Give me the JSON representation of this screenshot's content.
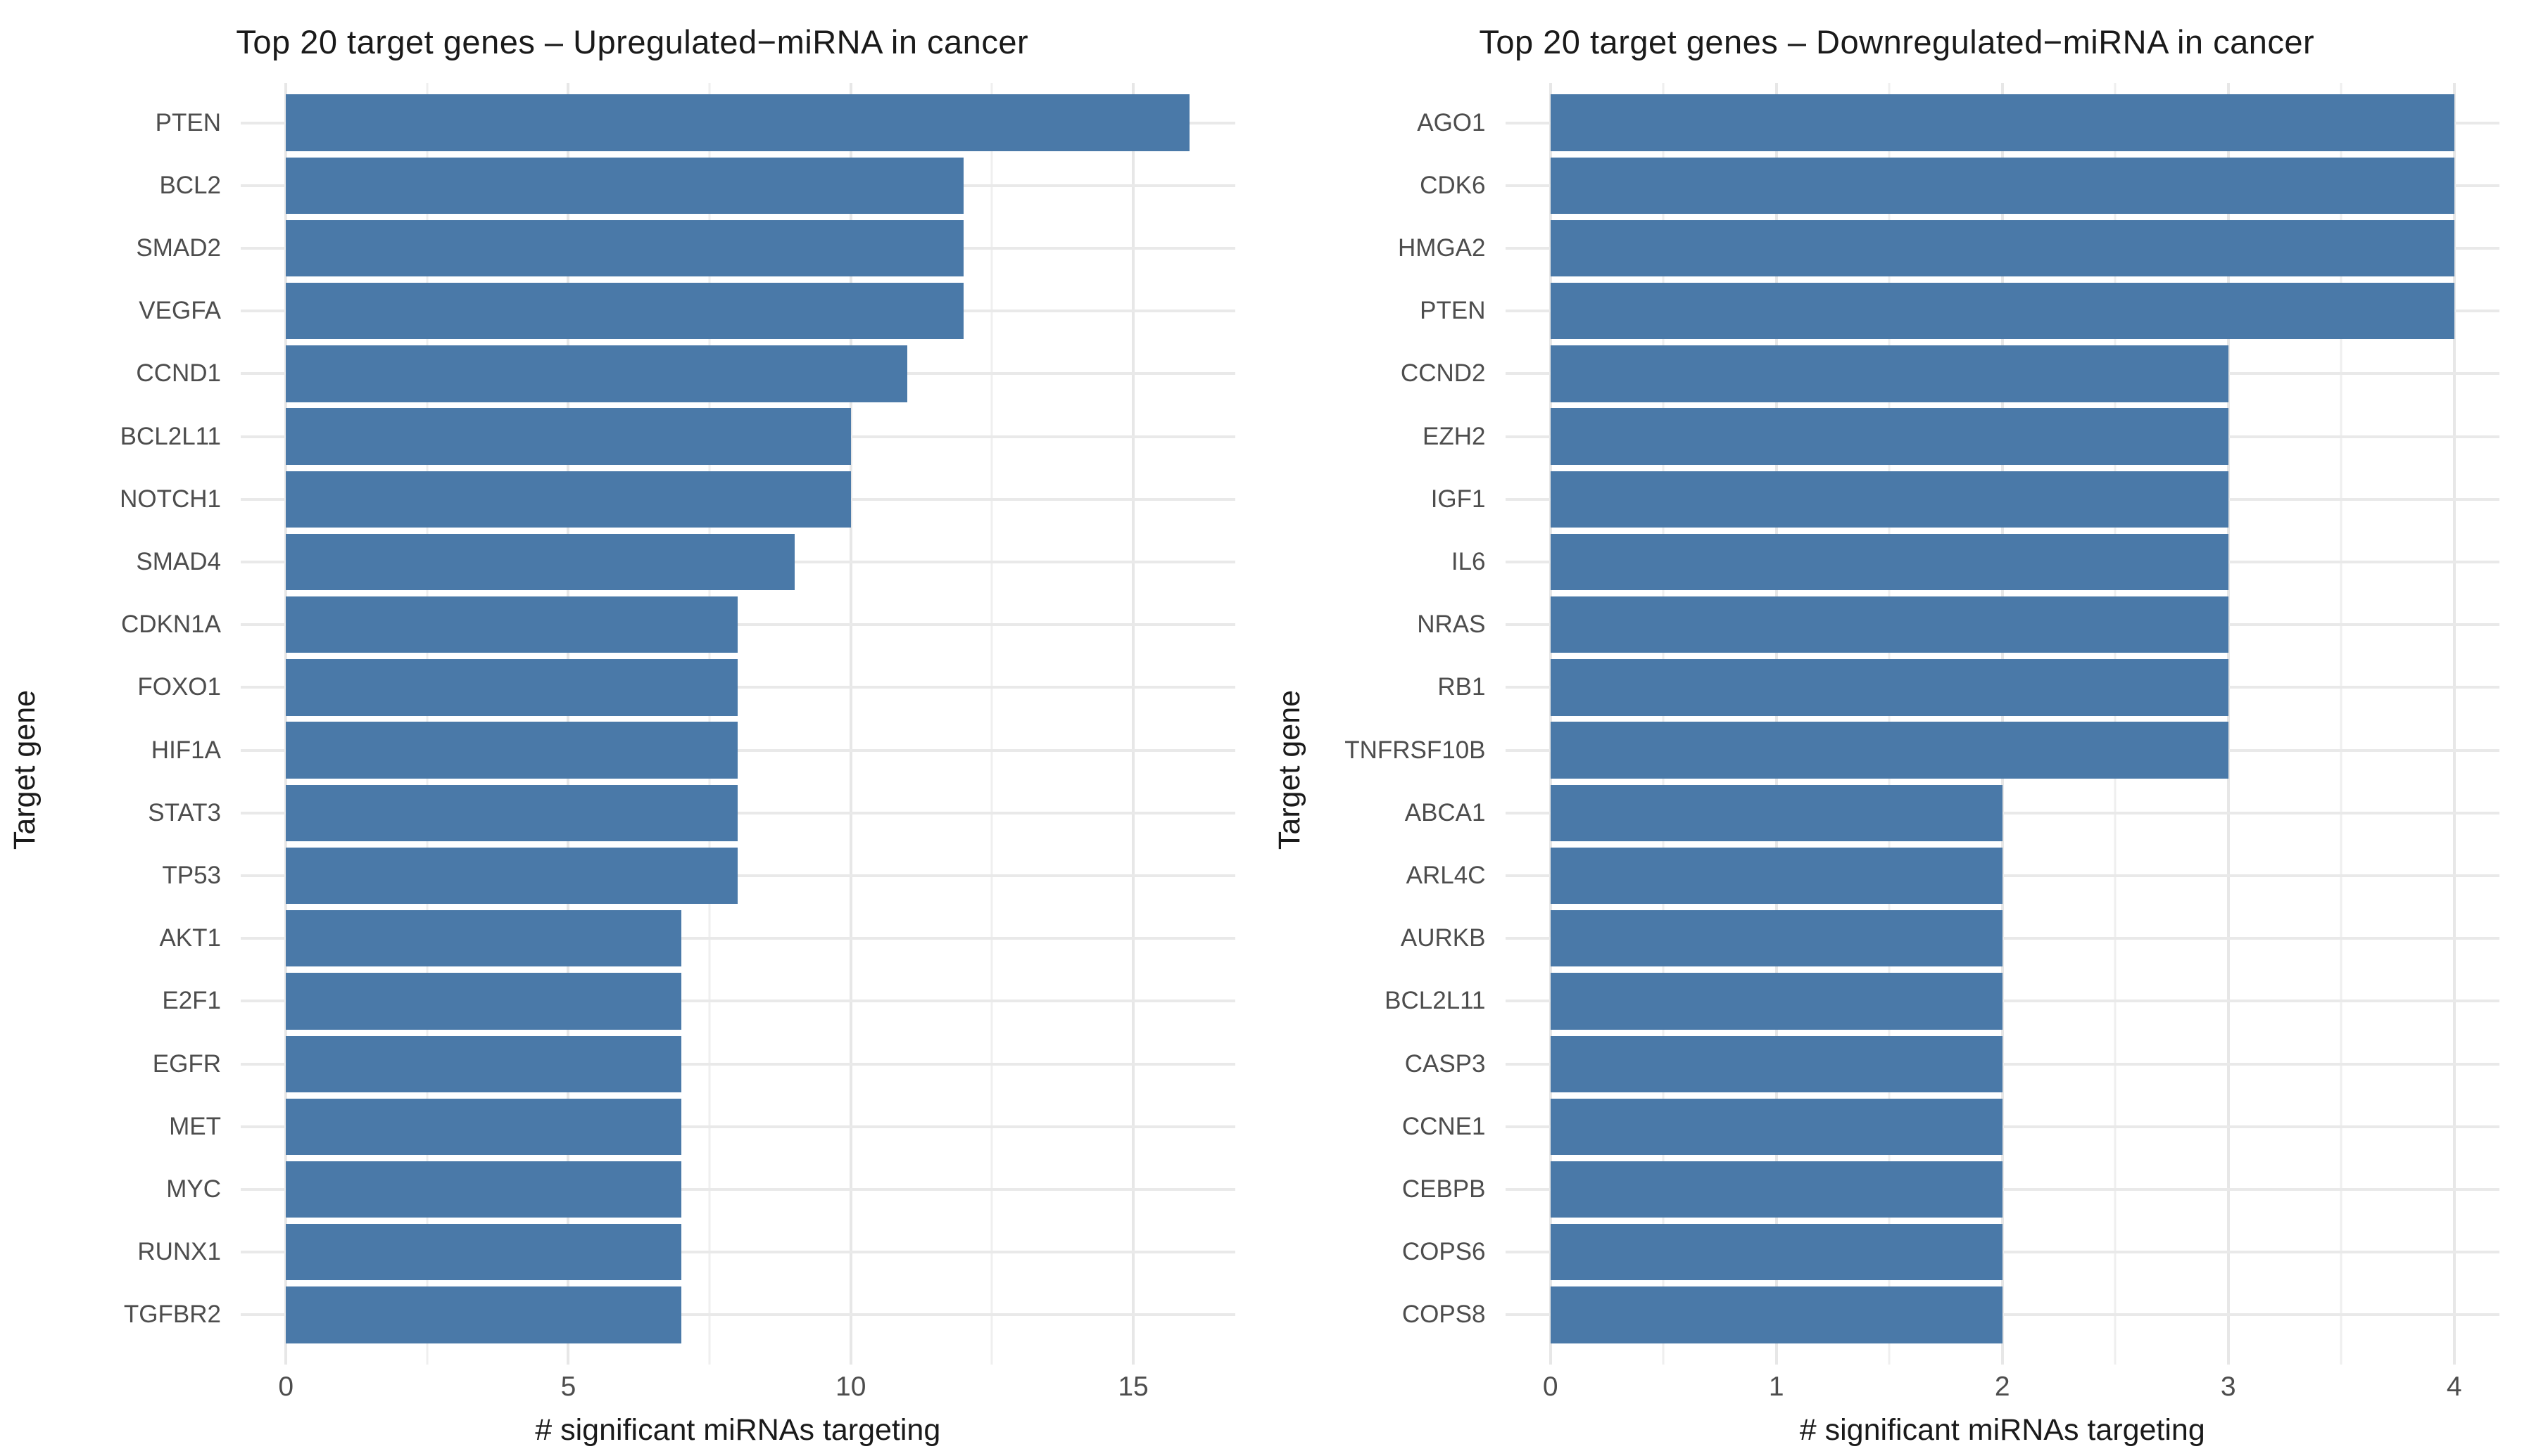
{
  "figure": {
    "background": "#ffffff",
    "bar_color": "#4a79a8",
    "grid_major_color": "#e7e7e7",
    "grid_minor_color": "#efefef",
    "axis_text_color": "#4d4d4d",
    "title_color": "#1a1a1a"
  },
  "chart_data": [
    {
      "type": "bar",
      "orientation": "horizontal",
      "title": "Top 20 target genes – Upregulated−miRNA in cancer",
      "xlabel": "# significant miRNAs targeting",
      "ylabel": "Target gene",
      "categories": [
        "PTEN",
        "BCL2",
        "SMAD2",
        "VEGFA",
        "CCND1",
        "BCL2L11",
        "NOTCH1",
        "SMAD4",
        "CDKN1A",
        "FOXO1",
        "HIF1A",
        "STAT3",
        "TP53",
        "AKT1",
        "E2F1",
        "EGFR",
        "MET",
        "MYC",
        "RUNX1",
        "TGFBR2"
      ],
      "values": [
        16,
        12,
        12,
        12,
        11,
        10,
        10,
        9,
        8,
        8,
        8,
        8,
        8,
        7,
        7,
        7,
        7,
        7,
        7,
        7
      ],
      "xlim": [
        0,
        16
      ],
      "x_major_ticks": [
        0,
        5,
        10,
        15
      ],
      "x_minor_ticks": [
        2.5,
        7.5,
        12.5
      ],
      "grid": true,
      "legend": "none"
    },
    {
      "type": "bar",
      "orientation": "horizontal",
      "title": "Top 20 target genes – Downregulated−miRNA in cancer",
      "xlabel": "# significant miRNAs targeting",
      "ylabel": "Target gene",
      "categories": [
        "AGO1",
        "CDK6",
        "HMGA2",
        "PTEN",
        "CCND2",
        "EZH2",
        "IGF1",
        "IL6",
        "NRAS",
        "RB1",
        "TNFRSF10B",
        "ABCA1",
        "ARL4C",
        "AURKB",
        "BCL2L11",
        "CASP3",
        "CCNE1",
        "CEBPB",
        "COPS6",
        "COPS8"
      ],
      "values": [
        4,
        4,
        4,
        4,
        3,
        3,
        3,
        3,
        3,
        3,
        3,
        2,
        2,
        2,
        2,
        2,
        2,
        2,
        2,
        2
      ],
      "xlim": [
        0,
        4
      ],
      "x_major_ticks": [
        0,
        1,
        2,
        3,
        4
      ],
      "x_minor_ticks": [
        0.5,
        1.5,
        2.5,
        3.5
      ],
      "grid": true,
      "legend": "none"
    }
  ]
}
